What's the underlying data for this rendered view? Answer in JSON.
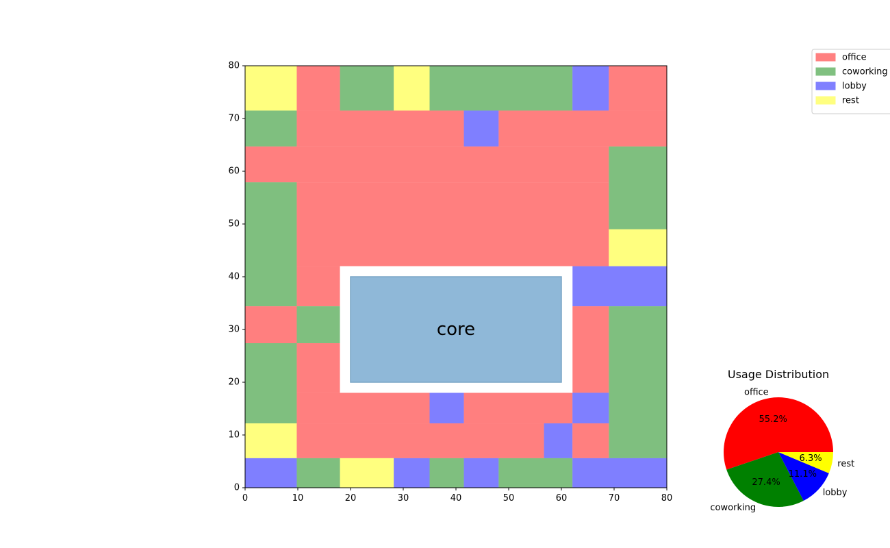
{
  "chart_data": [
    {
      "type": "heatmap",
      "xlim": [
        0,
        80
      ],
      "ylim": [
        0,
        80
      ],
      "x_ticks": [
        "0",
        "10",
        "20",
        "30",
        "40",
        "50",
        "60",
        "70",
        "80"
      ],
      "y_ticks": [
        "0",
        "10",
        "20",
        "30",
        "40",
        "50",
        "60",
        "70",
        "80"
      ],
      "grid": false,
      "legend_position": "top-right",
      "categories": [
        "office",
        "coworking",
        "lobby",
        "rest"
      ],
      "colors": {
        "office": "#ff0000",
        "coworking": "#008000",
        "lobby": "#0000ff",
        "rest": "#ffff00"
      },
      "zones": [
        {
          "usage": "rest",
          "x0": 0,
          "x1": 9.8,
          "y0": 71.5,
          "y1": 80
        },
        {
          "usage": "office",
          "x0": 9.8,
          "x1": 18,
          "y0": 71.5,
          "y1": 80
        },
        {
          "usage": "coworking",
          "x0": 18,
          "x1": 28.2,
          "y0": 71.5,
          "y1": 80
        },
        {
          "usage": "rest",
          "x0": 28.2,
          "x1": 35,
          "y0": 71.5,
          "y1": 80
        },
        {
          "usage": "coworking",
          "x0": 35,
          "x1": 62.1,
          "y0": 71.5,
          "y1": 80
        },
        {
          "usage": "lobby",
          "x0": 62.1,
          "x1": 69,
          "y0": 71.5,
          "y1": 80
        },
        {
          "usage": "office",
          "x0": 69,
          "x1": 80,
          "y0": 71.5,
          "y1": 80
        },
        {
          "usage": "coworking",
          "x0": 0,
          "x1": 9.8,
          "y0": 64.7,
          "y1": 71.5
        },
        {
          "usage": "office",
          "x0": 9.8,
          "x1": 41.5,
          "y0": 64.7,
          "y1": 71.5
        },
        {
          "usage": "lobby",
          "x0": 41.5,
          "x1": 48.1,
          "y0": 64.7,
          "y1": 71.5
        },
        {
          "usage": "office",
          "x0": 48.1,
          "x1": 80,
          "y0": 64.7,
          "y1": 71.5
        },
        {
          "usage": "office",
          "x0": 0,
          "x1": 69,
          "y0": 57.9,
          "y1": 64.7
        },
        {
          "usage": "coworking",
          "x0": 69,
          "x1": 80,
          "y0": 49,
          "y1": 64.7
        },
        {
          "usage": "coworking",
          "x0": 0,
          "x1": 9.8,
          "y0": 34.4,
          "y1": 57.9
        },
        {
          "usage": "office",
          "x0": 9.8,
          "x1": 69,
          "y0": 42,
          "y1": 57.9
        },
        {
          "usage": "rest",
          "x0": 69,
          "x1": 80,
          "y0": 42,
          "y1": 49
        },
        {
          "usage": "office",
          "x0": 9.8,
          "x1": 18,
          "y0": 34.4,
          "y1": 42
        },
        {
          "usage": "lobby",
          "x0": 62.1,
          "x1": 80,
          "y0": 34.4,
          "y1": 42
        },
        {
          "usage": "office",
          "x0": 0,
          "x1": 9.8,
          "y0": 27.4,
          "y1": 34.4
        },
        {
          "usage": "coworking",
          "x0": 9.8,
          "x1": 18,
          "y0": 27.4,
          "y1": 34.4
        },
        {
          "usage": "office",
          "x0": 62.1,
          "x1": 69,
          "y0": 18,
          "y1": 34.4
        },
        {
          "usage": "coworking",
          "x0": 69,
          "x1": 80,
          "y0": 5.6,
          "y1": 34.4
        },
        {
          "usage": "coworking",
          "x0": 0,
          "x1": 9.8,
          "y0": 12.2,
          "y1": 27.4
        },
        {
          "usage": "office",
          "x0": 9.8,
          "x1": 18,
          "y0": 18,
          "y1": 27.4
        },
        {
          "usage": "office",
          "x0": 9.8,
          "x1": 35,
          "y0": 12.2,
          "y1": 18
        },
        {
          "usage": "lobby",
          "x0": 35,
          "x1": 41.5,
          "y0": 12.2,
          "y1": 18
        },
        {
          "usage": "office",
          "x0": 41.5,
          "x1": 62.1,
          "y0": 12.2,
          "y1": 18
        },
        {
          "usage": "lobby",
          "x0": 62.1,
          "x1": 69,
          "y0": 12.2,
          "y1": 18
        },
        {
          "usage": "rest",
          "x0": 0,
          "x1": 9.8,
          "y0": 5.6,
          "y1": 12.2
        },
        {
          "usage": "office",
          "x0": 9.8,
          "x1": 56.7,
          "y0": 5.6,
          "y1": 12.2
        },
        {
          "usage": "lobby",
          "x0": 56.7,
          "x1": 62.1,
          "y0": 5.6,
          "y1": 12.2
        },
        {
          "usage": "office",
          "x0": 62.1,
          "x1": 69,
          "y0": 5.6,
          "y1": 12.2
        },
        {
          "usage": "lobby",
          "x0": 0,
          "x1": 9.8,
          "y0": 0,
          "y1": 5.6
        },
        {
          "usage": "coworking",
          "x0": 9.8,
          "x1": 18,
          "y0": 0,
          "y1": 5.6
        },
        {
          "usage": "rest",
          "x0": 18,
          "x1": 28.2,
          "y0": 0,
          "y1": 5.6
        },
        {
          "usage": "lobby",
          "x0": 28.2,
          "x1": 35,
          "y0": 0,
          "y1": 5.6
        },
        {
          "usage": "coworking",
          "x0": 35,
          "x1": 41.5,
          "y0": 0,
          "y1": 5.6
        },
        {
          "usage": "lobby",
          "x0": 41.5,
          "x1": 48.1,
          "y0": 0,
          "y1": 5.6
        },
        {
          "usage": "coworking",
          "x0": 48.1,
          "x1": 62.1,
          "y0": 0,
          "y1": 5.6
        },
        {
          "usage": "lobby",
          "x0": 62.1,
          "x1": 80,
          "y0": 0,
          "y1": 5.6
        }
      ],
      "void": {
        "x0": 18,
        "x1": 62.1,
        "y0": 18,
        "y1": 42
      },
      "core": {
        "label": "core",
        "x0": 20,
        "x1": 60,
        "y0": 20,
        "y1": 40,
        "color": "#8fb8d8"
      },
      "legend": [
        {
          "label": "office",
          "color": "#ff8080"
        },
        {
          "label": "coworking",
          "color": "#80c080"
        },
        {
          "label": "lobby",
          "color": "#8080ff"
        },
        {
          "label": "rest",
          "color": "#ffff80"
        }
      ]
    },
    {
      "type": "pie",
      "title": "Usage Distribution",
      "slices": [
        {
          "label": "office",
          "value": 55.2,
          "pct_label": "55.2%",
          "color": "#ff0000"
        },
        {
          "label": "coworking",
          "value": 27.4,
          "pct_label": "27.4%",
          "color": "#008000"
        },
        {
          "label": "lobby",
          "value": 11.1,
          "pct_label": "11.1%",
          "color": "#0000ff"
        },
        {
          "label": "rest",
          "value": 6.3,
          "pct_label": "6.3%",
          "color": "#ffff00"
        }
      ]
    }
  ]
}
